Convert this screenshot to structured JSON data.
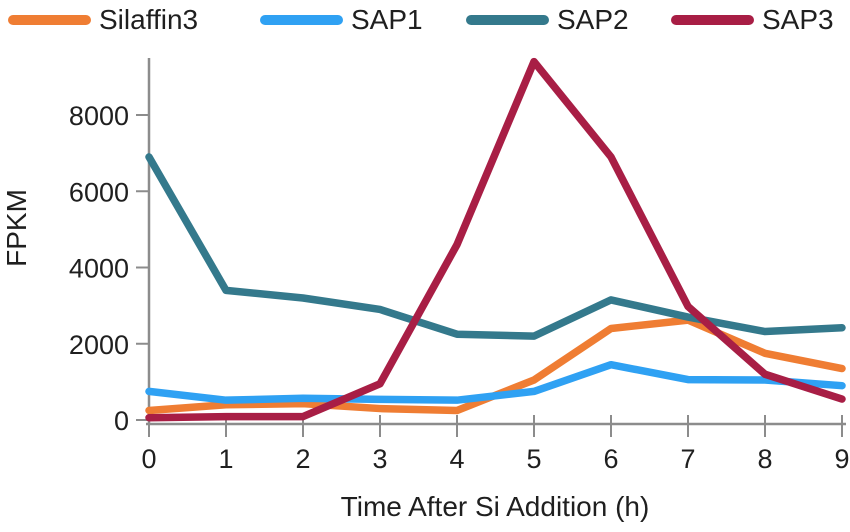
{
  "chart_data": {
    "type": "line",
    "x": [
      0,
      1,
      2,
      3,
      4,
      5,
      6,
      7,
      8,
      9
    ],
    "series": [
      {
        "name": "Silaffin3",
        "color": "#EF7D33",
        "values": [
          250,
          400,
          430,
          300,
          250,
          1050,
          2400,
          2620,
          1750,
          1350
        ]
      },
      {
        "name": "SAP1",
        "color": "#2FA1F3",
        "values": [
          750,
          520,
          570,
          540,
          520,
          750,
          1450,
          1060,
          1050,
          900
        ]
      },
      {
        "name": "SAP2",
        "color": "#34798C",
        "values": [
          6900,
          3400,
          3200,
          2900,
          2250,
          2200,
          3150,
          2700,
          2320,
          2420
        ]
      },
      {
        "name": "SAP3",
        "color": "#A81E45",
        "values": [
          60,
          90,
          90,
          950,
          4600,
          9400,
          6900,
          2980,
          1200,
          550
        ]
      }
    ],
    "title": "",
    "xlabel": "Time After Si Addition (h)",
    "ylabel": "FPKM",
    "xticks": [
      0,
      1,
      2,
      3,
      4,
      5,
      6,
      7,
      8,
      9
    ],
    "yticks": [
      0,
      2000,
      4000,
      6000,
      8000
    ],
    "ylim": [
      0,
      9700
    ],
    "grid": false,
    "legend_position": "top",
    "axis_color": "#8C8C8C",
    "text_color": "#1F1F1F"
  }
}
